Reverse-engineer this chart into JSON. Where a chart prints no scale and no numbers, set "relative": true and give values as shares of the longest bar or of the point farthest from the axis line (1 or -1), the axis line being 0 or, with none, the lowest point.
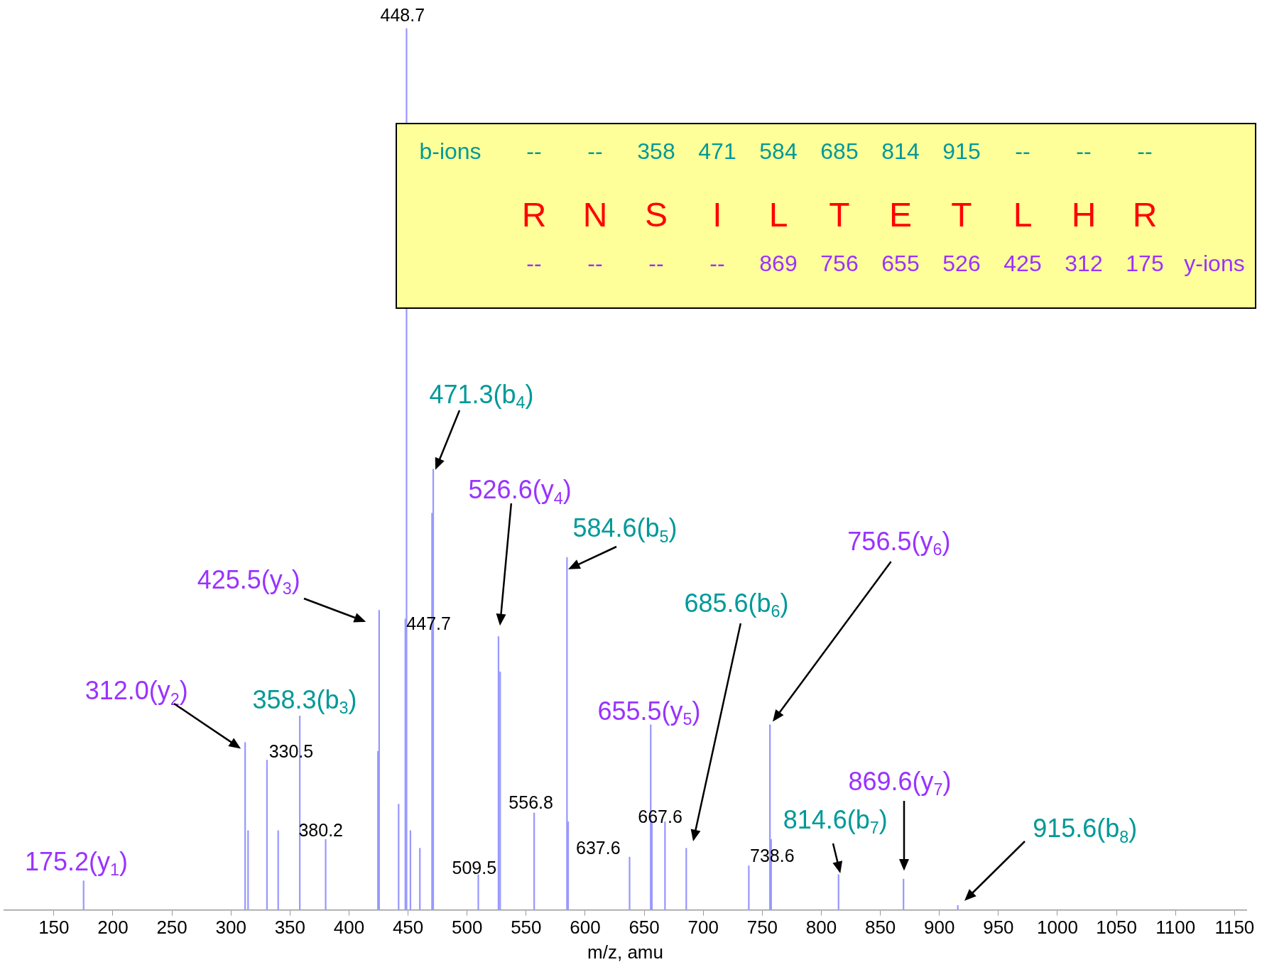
{
  "chart_data": {
    "type": "bar",
    "relative": true,
    "xlabel": "m/z, amu",
    "xlim": [
      108,
      1160
    ],
    "xticks": [
      150,
      200,
      250,
      300,
      350,
      400,
      450,
      500,
      550,
      600,
      650,
      700,
      750,
      800,
      850,
      900,
      950,
      1000,
      1050,
      1100,
      1150
    ],
    "grid": false,
    "legend": false,
    "color": "#9999ff",
    "x": [
      175.2,
      312.0,
      314.5,
      330.5,
      340.0,
      358.3,
      380.2,
      424.5,
      425.5,
      442.0,
      447.7,
      448.7,
      452.0,
      460.0,
      470.3,
      471.3,
      509.5,
      526.6,
      528.0,
      556.8,
      584.6,
      585.6,
      637.6,
      655.5,
      656.5,
      667.6,
      685.6,
      738.6,
      756.5,
      757.5,
      814.6,
      869.6,
      915.6
    ],
    "values": [
      0.033,
      0.19,
      0.09,
      0.17,
      0.09,
      0.22,
      0.08,
      0.18,
      0.34,
      0.12,
      0.33,
      1,
      0.09,
      0.07,
      0.45,
      0.5,
      0.04,
      0.31,
      0.27,
      0.11,
      0.4,
      0.1,
      0.06,
      0.21,
      0.1,
      0.1,
      0.07,
      0.05,
      0.21,
      0.08,
      0.04,
      0.035,
      0.005
    ],
    "annotations": [
      "b-ions -- -- 358 471 584 685 814 915 -- -- --",
      "R N S I L T E T L H R",
      "-- -- -- -- 869 756 655 526 425 312 175 y-ions",
      {
        "text": "175.2(y$_{1}$)",
        "x": 175.2,
        "y": 0.033
      },
      {
        "text": "312.0(y$_{2}$)",
        "x": 312.0,
        "y": 0.19
      },
      {
        "text": "330.5",
        "x": 330.5,
        "y": 0.17
      },
      {
        "text": "358.3(b$_{3}$)",
        "x": 358.3,
        "y": 0.22
      },
      {
        "text": "380.2",
        "x": 380.2,
        "y": 0.08
      },
      "425.5(y$_{3}$)",
      {
        "text": "447.7",
        "x": 447.7,
        "y": 0.33
      },
      {
        "text": "448.7",
        "x": 448.7,
        "y": 1
      },
      {
        "text": "471.3(b$_{4}$)",
        "x": 471.3,
        "y": 0.5
      },
      {
        "text": "509.5",
        "x": 509.5,
        "y": 0.04
      },
      "526.6(y$_{4}$)",
      {
        "text": "556.8",
        "x": 556.8,
        "y": 0.11
      },
      {
        "text": "584.6(b$_{5}$)",
        "x": 584.6,
        "y": 0.4
      },
      {
        "text": "637.6",
        "x": 637.6,
        "y": 0.06
      },
      {
        "text": "655.5(y$_{5}$)",
        "x": 655.5,
        "y": 0.21
      },
      {
        "text": "667.6",
        "x": 667.6,
        "y": 0.1
      },
      "685.6(b$_{6}$)",
      {
        "text": "738.6",
        "x": 738.6,
        "y": 0.05
      },
      "756.5(y$_{6}$)",
      {
        "text": "814.6(b$_{7}$)",
        "x": 814.6,
        "y": 0.04
      },
      "869.6(y$_{7}$)",
      "915.6(b$_{8}$)"
    ]
  }
}
